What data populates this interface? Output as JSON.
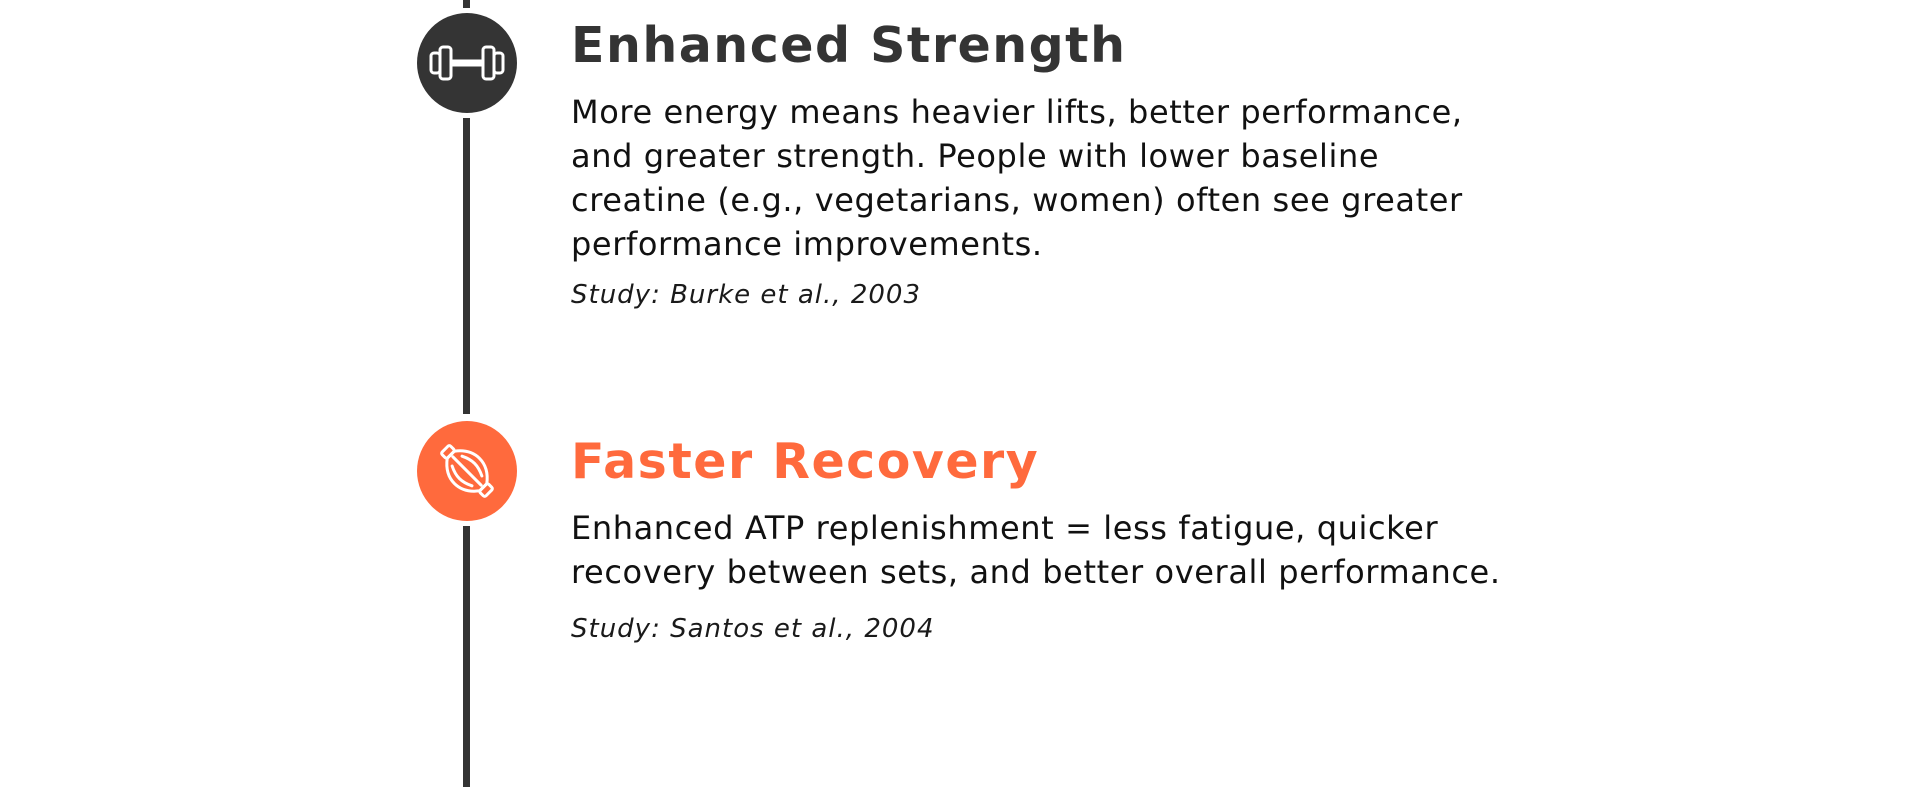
{
  "theme": {
    "dark": "#343434",
    "accent": "#FF6A3D",
    "text": "#111111"
  },
  "timeline": {
    "items": [
      {
        "icon": "dumbbell-icon",
        "icon_color": "#343434",
        "title": "Enhanced Strength",
        "title_color": "#343434",
        "description": "More energy means heavier lifts, better performance, and greater strength. People with lower baseline creatine (e.g., vegetarians, women) often see greater performance improvements.",
        "citation": "Study: Burke et al., 2003"
      },
      {
        "icon": "muscle-icon",
        "icon_color": "#FF6A3D",
        "title": "Faster Recovery",
        "title_color": "#FF6A3D",
        "description": "Enhanced ATP replenishment = less fatigue, quicker recovery between sets, and better overall performance.",
        "citation": "Study: Santos et al., 2004"
      }
    ]
  }
}
